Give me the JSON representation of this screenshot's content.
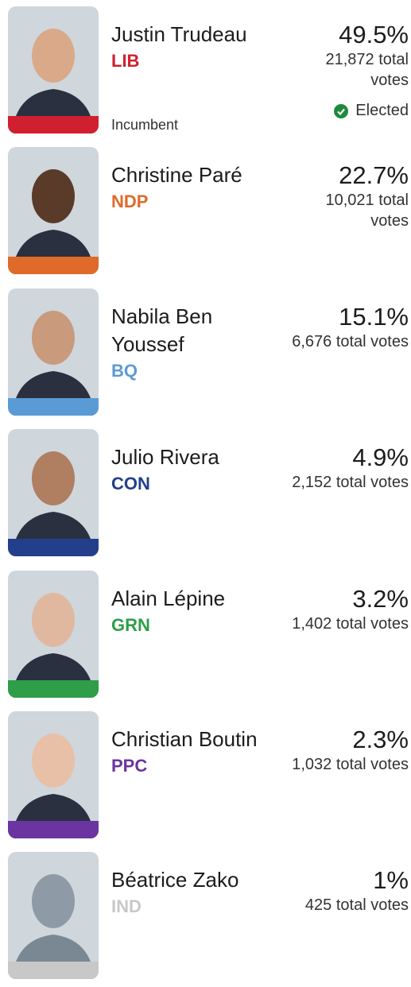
{
  "candidates": [
    {
      "name": "Justin Trudeau",
      "party": "LIB",
      "color": "#d02030",
      "percent": "49.5%",
      "votes": "21,872 total votes",
      "status": "Elected",
      "note": "Incumbent"
    },
    {
      "name": "Christine Paré",
      "party": "NDP",
      "color": "#e06a2a",
      "percent": "22.7%",
      "votes": "10,021 total votes"
    },
    {
      "name": "Nabila Ben Youssef",
      "party": "BQ",
      "color": "#5b9bd5",
      "percent": "15.1%",
      "votes": "6,676 total votes"
    },
    {
      "name": "Julio Rivera",
      "party": "CON",
      "color": "#233e8b",
      "percent": "4.9%",
      "votes": "2,152 total votes"
    },
    {
      "name": "Alain Lépine",
      "party": "GRN",
      "color": "#2e9e48",
      "percent": "3.2%",
      "votes": "1,402 total votes"
    },
    {
      "name": "Christian Boutin",
      "party": "PPC",
      "color": "#6a35a0",
      "percent": "2.3%",
      "votes": "1,032 total votes"
    },
    {
      "name": "Béatrice Zako",
      "party": "IND",
      "color": "#c8c8c8",
      "percent": "1%",
      "votes": "425 total votes"
    }
  ]
}
